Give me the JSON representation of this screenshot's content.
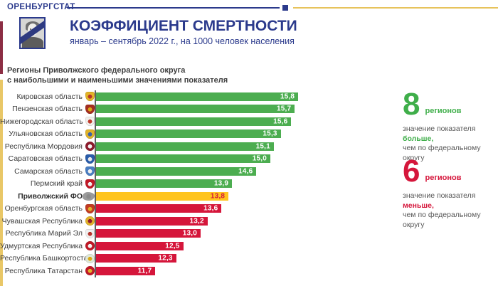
{
  "colors": {
    "navy": "#2b3a8c",
    "gold_line": "#e7c35c",
    "maroon_stripe": "#8c2e44",
    "green": "#4cad50",
    "yellow": "#ffc41e",
    "red": "#d5163b",
    "label_grey": "#3d3d3d",
    "text_grey": "#575757"
  },
  "header": {
    "brand": "ОРЕНБУРГСТАТ",
    "title": "КОЭФФИЦИЕНТ СМЕРТНОСТИ",
    "subtitle": "январь – сентябрь 2022 г., на 1000 человек населения",
    "portrait_icon": "mourning-portrait-icon"
  },
  "section": {
    "line1": "Регионы Приволжского федерального округа",
    "line2": "с наибольшими и наименьшими значениями показателя"
  },
  "chart_data": {
    "type": "bar",
    "orientation": "horizontal",
    "title": "КОЭФФИЦИЕНТ СМЕРТНОСТИ",
    "subtitle": "январь – сентябрь 2022 г., на 1000 человек населения",
    "xlim": [
      10,
      16
    ],
    "grid": false,
    "decimal_style": "comma",
    "categories": [
      "Кировская область",
      "Пензенская область",
      "Нижегородская область",
      "Ульяновская область",
      "Республика Мордовия",
      "Саратовская область",
      "Самарская область",
      "Пермский край",
      "Приволжский ФО",
      "Оренбургская область",
      "Чувашская Республика",
      "Республика Марий Эл",
      "Удмуртская Республика",
      "Республика Башкортостан",
      "Республика Татарстан"
    ],
    "values": [
      15.8,
      15.7,
      15.6,
      15.3,
      15.1,
      15.0,
      14.6,
      13.9,
      13.8,
      13.6,
      13.2,
      13.0,
      12.5,
      12.3,
      11.7
    ],
    "display_values": [
      "15,8",
      "15,7",
      "15,6",
      "15,3",
      "15,1",
      "15,0",
      "14,6",
      "13,9",
      "13,8",
      "13,6",
      "13,2",
      "13,0",
      "12,5",
      "12,3",
      "11,7"
    ],
    "statuses": [
      "above",
      "above",
      "above",
      "above",
      "above",
      "above",
      "above",
      "above",
      "fd",
      "below",
      "below",
      "below",
      "below",
      "below",
      "below"
    ],
    "bar_colors": {
      "above": "#4cad50",
      "fd": "#ffc41e",
      "below": "#d5163b"
    },
    "value_label_colors": {
      "above": "#ffffff",
      "fd": "#d5163b",
      "below": "#ffffff"
    }
  },
  "region_icons": [
    {
      "name": "kirovskaya-coat-of-arms-icon",
      "shape": "shield",
      "c1": "#e3b428",
      "c2": "#b5342c",
      "bold": false
    },
    {
      "name": "penzenskaya-coat-of-arms-icon",
      "shape": "shield",
      "c1": "#a52e20",
      "c2": "#d9a916",
      "bold": false
    },
    {
      "name": "nizhegorodskaya-coat-of-arms-icon",
      "shape": "shield",
      "c1": "#f0efeb",
      "c2": "#c0392b",
      "bold": false
    },
    {
      "name": "ulyanovskaya-coat-of-arms-icon",
      "shape": "shield",
      "c1": "#e0b22a",
      "c2": "#3a62a8",
      "bold": false
    },
    {
      "name": "mordovia-coat-of-arms-icon",
      "shape": "circle",
      "c1": "#8e1b2c",
      "c2": "#f2f2f2",
      "bold": false
    },
    {
      "name": "saratovskaya-coat-of-arms-icon",
      "shape": "shield",
      "c1": "#2a5caa",
      "c2": "#e8e8e8",
      "bold": false
    },
    {
      "name": "samarskaya-coat-of-arms-icon",
      "shape": "shield",
      "c1": "#4a7ec2",
      "c2": "#f0f0f0",
      "bold": false
    },
    {
      "name": "permsky-coat-of-arms-icon",
      "shape": "shield",
      "c1": "#c01826",
      "c2": "#f0f0f0",
      "bold": false
    },
    {
      "name": "privolzhsky-fo-map-icon",
      "shape": "map",
      "c1": "#9a9a9a",
      "c2": "#8a8a8a",
      "bold": true
    },
    {
      "name": "orenburgskaya-coat-of-arms-icon",
      "shape": "shield",
      "c1": "#c23b22",
      "c2": "#e0b22a",
      "bold": false
    },
    {
      "name": "chuvashia-coat-of-arms-icon",
      "shape": "circle",
      "c1": "#e0b22a",
      "c2": "#8e1b2c",
      "bold": false
    },
    {
      "name": "mari-el-coat-of-arms-icon",
      "shape": "shield",
      "c1": "#efefef",
      "c2": "#b5342c",
      "bold": false
    },
    {
      "name": "udmurtia-coat-of-arms-icon",
      "shape": "circle",
      "c1": "#c01826",
      "c2": "#f2f2f2",
      "bold": false
    },
    {
      "name": "bashkortostan-coat-of-arms-icon",
      "shape": "circle",
      "c1": "#dfe8d8",
      "c2": "#d9a916",
      "bold": false
    },
    {
      "name": "tatarstan-coat-of-arms-icon",
      "shape": "circle",
      "c1": "#c01826",
      "c2": "#e0b22a",
      "bold": false
    }
  ],
  "stats": {
    "above": {
      "count": "8",
      "unit": "регионов",
      "t1": "значение показателя",
      "hl": "больше,",
      "t2": "чем по федеральному округу"
    },
    "below": {
      "count": "6",
      "unit": "регионов",
      "t1": "значение показателя",
      "hl": "меньше,",
      "t2": "чем по федеральному округу"
    }
  }
}
